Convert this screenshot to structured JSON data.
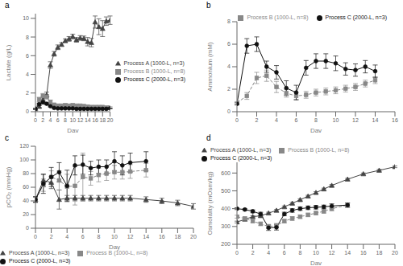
{
  "chart_data": [
    {
      "type": "line",
      "title": "a",
      "xlabel": "Day",
      "ylabel": "Lactate (g/L)",
      "xlim": [
        0,
        20
      ],
      "ylim": [
        0,
        10.5
      ],
      "xticks": [
        0,
        2,
        4,
        6,
        8,
        10,
        12,
        14,
        16,
        18,
        20
      ],
      "yticks": [
        0.0,
        2.0,
        4.0,
        6.0,
        8.0,
        10.0
      ],
      "grid": false,
      "legend": "center right",
      "series": [
        {
          "name": "Process A (1000-L, n=3)",
          "color": "#444444",
          "marker": "triangle",
          "line_style": "solid",
          "x": [
            0,
            1,
            2,
            3,
            4,
            5,
            6,
            7,
            8,
            9,
            10,
            11,
            12,
            13,
            14,
            15,
            16,
            17,
            18,
            19,
            20
          ],
          "values": [
            0.3,
            0.55,
            1.3,
            1.8,
            5.0,
            6.2,
            6.9,
            7.2,
            7.6,
            7.8,
            8.05,
            7.7,
            7.9,
            7.85,
            7.5,
            7.4,
            9.6,
            9.1,
            8.9,
            9.7,
            9.8
          ],
          "errors": [
            0.05,
            0.1,
            0.25,
            0.3,
            0.35,
            0.25,
            0.25,
            0.2,
            0.2,
            0.25,
            0.25,
            0.25,
            0.25,
            0.25,
            0.45,
            0.45,
            0.65,
            0.85,
            0.85,
            0.45,
            0.45
          ]
        },
        {
          "name": "Process B (1000-L, n=8)",
          "color": "#888888",
          "marker": "square",
          "line_style": "dashed",
          "x": [
            0,
            1,
            2,
            3,
            4,
            5,
            6,
            7,
            8,
            9,
            10,
            11,
            12,
            13,
            14,
            15,
            16,
            17,
            18,
            19,
            20
          ],
          "values": [
            0.3,
            1.3,
            1.7,
            1.6,
            1.05,
            0.75,
            0.65,
            0.65,
            0.7,
            0.65,
            0.7,
            0.65,
            0.65,
            0.6,
            0.55,
            0.5,
            0.5,
            0.5,
            0.5,
            0.45,
            0.45
          ],
          "errors": [
            0.05,
            0.25,
            0.25,
            0.25,
            0.18,
            0.12,
            0.12,
            0.08,
            0.12,
            0.08,
            0.12,
            0.08,
            0.08,
            0.08,
            0.08,
            0.08,
            0.08,
            0.08,
            0.08,
            0.08,
            0.08
          ]
        },
        {
          "name": "Process C (2000-L, n=3)",
          "color": "#111111",
          "marker": "circle",
          "line_style": "solid",
          "x": [
            0,
            1,
            2,
            3,
            4,
            5,
            6,
            7,
            8,
            9,
            10,
            11,
            12,
            13,
            14,
            15,
            16,
            17,
            18,
            19,
            20
          ],
          "values": [
            0.3,
            0.8,
            1.0,
            0.85,
            0.6,
            0.4,
            0.35,
            0.35,
            0.35,
            0.35,
            0.35,
            0.3,
            0.3,
            0.3,
            0.3,
            0.3,
            0.3,
            0.3,
            0.3,
            0.3,
            0.35
          ],
          "errors": [
            0.05,
            0.1,
            0.12,
            0.1,
            0.08,
            0.05,
            0.04,
            0.04,
            0.04,
            0.04,
            0.04,
            0.04,
            0.04,
            0.04,
            0.04,
            0.04,
            0.04,
            0.04,
            0.04,
            0.04,
            0.04
          ]
        }
      ]
    },
    {
      "type": "line",
      "title": "b",
      "xlabel": "Day",
      "ylabel": "Ammonium (mM)",
      "xlim": [
        0,
        16
      ],
      "ylim": [
        0,
        8
      ],
      "xticks": [
        0,
        2,
        4,
        6,
        8,
        10,
        12,
        14,
        16
      ],
      "yticks": [
        0,
        2,
        4,
        6,
        8
      ],
      "grid": false,
      "legend": "upper right",
      "series": [
        {
          "name": "Process B (1000-L, n=8)",
          "color": "#888888",
          "marker": "square",
          "line_style": "dashed",
          "x": [
            0,
            1,
            2,
            3,
            4,
            5,
            6,
            7,
            8,
            9,
            10,
            11,
            12,
            13,
            14
          ],
          "values": [
            0.8,
            1.4,
            3.0,
            3.2,
            2.2,
            1.65,
            1.4,
            1.5,
            1.7,
            1.8,
            1.9,
            2.05,
            2.2,
            2.5,
            2.8
          ],
          "errors": [
            0.1,
            0.3,
            0.5,
            0.5,
            0.5,
            0.35,
            0.3,
            0.3,
            0.3,
            0.3,
            0.3,
            0.3,
            0.3,
            0.3,
            0.3
          ]
        },
        {
          "name": "Process C (2000-L, n=3)",
          "color": "#111111",
          "marker": "circle",
          "line_style": "solid",
          "x": [
            0,
            1,
            2,
            3,
            4,
            5,
            6,
            7,
            8,
            9,
            10,
            11,
            12,
            13,
            14
          ],
          "values": [
            0.7,
            5.85,
            6.0,
            4.0,
            3.5,
            2.1,
            1.7,
            3.9,
            4.5,
            4.5,
            4.3,
            3.8,
            3.7,
            4.0,
            3.6
          ],
          "errors": [
            0.1,
            0.65,
            0.65,
            0.5,
            0.6,
            0.65,
            0.65,
            0.65,
            0.65,
            0.65,
            0.65,
            0.55,
            0.55,
            0.55,
            0.55
          ]
        }
      ]
    },
    {
      "type": "line",
      "title": "c",
      "xlabel": "Day",
      "ylabel": "pCO₂ (mmHg)",
      "xlim": [
        0,
        20
      ],
      "ylim": [
        0,
        120
      ],
      "xticks": [
        0,
        2,
        4,
        6,
        8,
        10,
        12,
        14,
        16,
        18,
        20
      ],
      "yticks": [
        0,
        20,
        40,
        60,
        80,
        100,
        120
      ],
      "grid": false,
      "legend": "lower left",
      "series": [
        {
          "name": "Process A (1000-L, n=3)",
          "color": "#444444",
          "marker": "triangle",
          "line_style": "solid",
          "x": [
            0,
            1,
            2,
            3,
            4,
            5,
            6,
            7,
            8,
            9,
            10,
            11,
            12,
            14,
            16,
            18,
            20
          ],
          "values": [
            42,
            70,
            67,
            42,
            44,
            44,
            44,
            44,
            44,
            44,
            44,
            44,
            44,
            42,
            40,
            37,
            32
          ],
          "errors": [
            4,
            9,
            9,
            14,
            4,
            4,
            4,
            4,
            4,
            4,
            4,
            4,
            4,
            4,
            4,
            4,
            4
          ]
        },
        {
          "name": "Process B (1000-L, n=8)",
          "color": "#888888",
          "marker": "square",
          "line_style": "dashed",
          "x": [
            0,
            1,
            2,
            3,
            4,
            5,
            6,
            7,
            8,
            9,
            10,
            11,
            12,
            14
          ],
          "values": [
            42,
            63,
            75,
            70,
            61,
            62,
            75,
            73,
            78,
            80,
            82,
            82,
            83,
            85
          ],
          "errors": [
            4,
            9,
            9,
            14,
            18,
            28,
            35,
            10,
            10,
            10,
            10,
            10,
            10,
            10
          ]
        },
        {
          "name": "Process C (2000-L, n=3)",
          "color": "#111111",
          "marker": "circle",
          "line_style": "solid",
          "x": [
            0,
            1,
            2,
            3,
            4,
            5,
            6,
            7,
            8,
            9,
            10,
            11,
            12,
            14
          ],
          "values": [
            42,
            65,
            75,
            82,
            62,
            92,
            93,
            88,
            90,
            90,
            98,
            92,
            96,
            98
          ],
          "errors": [
            4,
            14,
            14,
            14,
            23,
            14,
            14,
            10,
            10,
            10,
            14,
            14,
            14,
            14
          ]
        }
      ]
    },
    {
      "type": "line",
      "title": "d",
      "xlabel": "Day",
      "ylabel": "Osmolality (mOsm/kg)",
      "xlim": [
        0,
        20
      ],
      "ylim": [
        200,
        660
      ],
      "xticks": [
        0,
        2,
        4,
        6,
        8,
        10,
        12,
        14,
        16,
        18,
        20
      ],
      "yticks": [
        200,
        300,
        400,
        500,
        600
      ],
      "grid": false,
      "legend": "upper left",
      "series": [
        {
          "name": "Process A (1000-L, n=3)",
          "color": "#444444",
          "marker": "triangle",
          "line_style": "solid",
          "x": [
            0,
            1,
            2,
            3,
            4,
            5,
            6,
            7,
            8,
            9,
            10,
            11,
            12,
            14,
            16,
            18,
            20
          ],
          "values": [
            325,
            340,
            355,
            360,
            375,
            390,
            410,
            430,
            450,
            470,
            490,
            510,
            530,
            565,
            595,
            615,
            635
          ],
          "errors": [
            5,
            5,
            5,
            5,
            5,
            5,
            5,
            5,
            5,
            5,
            5,
            5,
            5,
            5,
            5,
            5,
            5
          ]
        },
        {
          "name": "Process B (1000-L, n=8)",
          "color": "#888888",
          "marker": "square",
          "line_style": "dashed",
          "x": [
            0,
            1,
            2,
            3,
            4,
            5,
            6,
            7,
            8,
            9,
            10,
            11,
            12,
            14
          ],
          "values": [
            355,
            345,
            330,
            315,
            300,
            305,
            330,
            345,
            355,
            365,
            375,
            385,
            400,
            420
          ],
          "errors": [
            8,
            8,
            8,
            10,
            12,
            12,
            10,
            10,
            10,
            10,
            10,
            10,
            12,
            12
          ]
        },
        {
          "name": "Process C (2000-L, n=3)",
          "color": "#111111",
          "marker": "circle",
          "line_style": "solid",
          "x": [
            0,
            1,
            2,
            3,
            4,
            5,
            6,
            7,
            8,
            9,
            10,
            11,
            12,
            14
          ],
          "values": [
            400,
            395,
            385,
            370,
            293,
            295,
            370,
            390,
            400,
            405,
            408,
            410,
            415,
            420
          ],
          "errors": [
            5,
            5,
            8,
            10,
            15,
            15,
            10,
            10,
            10,
            10,
            10,
            10,
            12,
            12
          ]
        }
      ]
    }
  ]
}
